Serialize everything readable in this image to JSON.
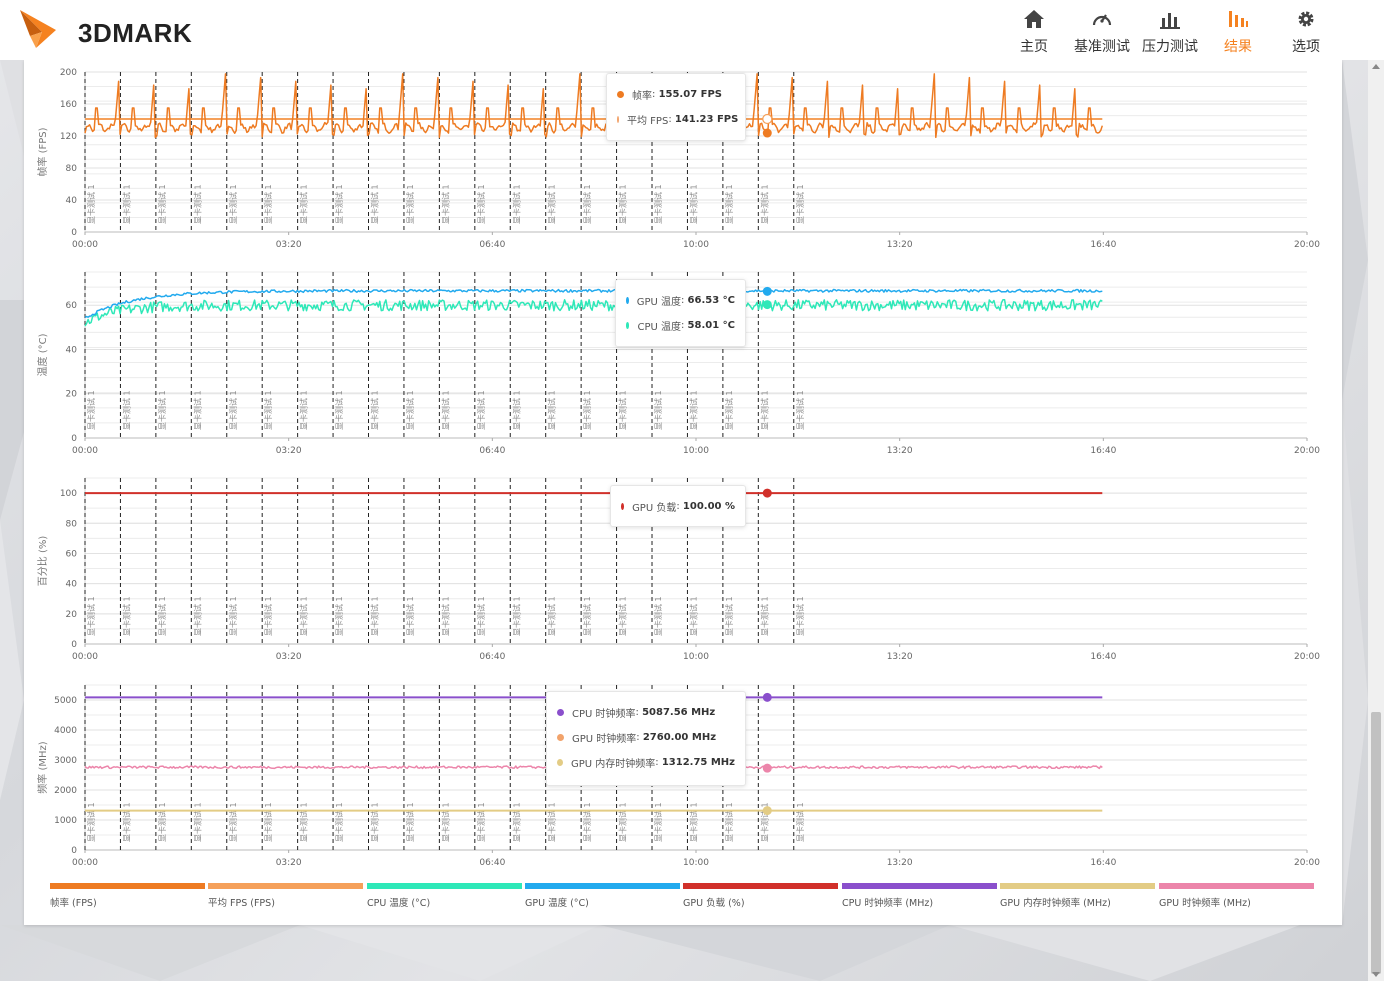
{
  "app": {
    "name": "3DMARK"
  },
  "nav": [
    {
      "key": "home",
      "label": "主页",
      "icon": "home-icon",
      "active": false
    },
    {
      "key": "benchmarks",
      "label": "基准测试",
      "icon": "speedometer-icon",
      "active": false
    },
    {
      "key": "stress",
      "label": "压力测试",
      "icon": "bar-chart-icon",
      "active": false
    },
    {
      "key": "results",
      "label": "结果",
      "icon": "results-icon",
      "active": true
    },
    {
      "key": "options",
      "label": "选项",
      "icon": "gear-icon",
      "active": false
    }
  ],
  "colors": {
    "accent": "#f58220",
    "fps": "#ee7b22",
    "avg_fps": "#f5a05a",
    "cpu_temp": "#2ee8b8",
    "gpu_temp": "#22aaee",
    "gpu_load": "#d1302a",
    "cpu_clock": "#8a4fcc",
    "gpu_mem_clock": "#e3cc85",
    "gpu_clock": "#ec85aa"
  },
  "x_axis": {
    "ticks": [
      "00:00",
      "03:20",
      "06:40",
      "10:00",
      "13:20",
      "16:40",
      "20:00"
    ],
    "max_seconds": 1200
  },
  "loop_marker_label": "显卡测试 1",
  "cursor_time": "11:10",
  "chart_data": [
    {
      "type": "line",
      "ylabel": "帧率 (FPS)",
      "ylim": [
        0,
        200
      ],
      "yticks": [
        0,
        40,
        80,
        120,
        160,
        200
      ],
      "series": [
        {
          "name": "帧率",
          "color_key": "fps",
          "pattern": "spiky",
          "base": 130,
          "peak": 200
        },
        {
          "name": "平均 FPS",
          "color_key": "avg_fps",
          "pattern": "flat",
          "value": 141.23
        }
      ],
      "tooltip": [
        {
          "label": "帧率",
          "value": "155.07 FPS",
          "color_key": "fps",
          "hollow": false
        },
        {
          "label": "平均 FPS",
          "value": "141.23 FPS",
          "color_key": "avg_fps",
          "hollow": true
        }
      ]
    },
    {
      "type": "line",
      "ylabel": "温度 (°C)",
      "ylim": [
        0,
        75
      ],
      "yticks": [
        0,
        20,
        40,
        60
      ],
      "series": [
        {
          "name": "GPU 温度",
          "color_key": "gpu_temp",
          "pattern": "warmup",
          "start": 54,
          "value": 66.5
        },
        {
          "name": "CPU 温度",
          "color_key": "cpu_temp",
          "pattern": "noisy",
          "start": 52,
          "value": 60
        }
      ],
      "tooltip": [
        {
          "label": "GPU 温度",
          "value": "66.53 °C",
          "color_key": "gpu_temp",
          "hollow": false
        },
        {
          "label": "CPU 温度",
          "value": "58.01 °C",
          "color_key": "cpu_temp",
          "hollow": false
        }
      ]
    },
    {
      "type": "line",
      "ylabel": "百分比 (%)",
      "ylim": [
        0,
        110
      ],
      "yticks": [
        0,
        20,
        40,
        60,
        80,
        100
      ],
      "series": [
        {
          "name": "GPU 负载",
          "color_key": "gpu_load",
          "pattern": "flat",
          "value": 100
        }
      ],
      "tooltip": [
        {
          "label": "GPU 负载",
          "value": "100.00 %",
          "color_key": "gpu_load",
          "hollow": false
        }
      ]
    },
    {
      "type": "line",
      "ylabel": "频率 (MHz)",
      "ylim": [
        0,
        5500
      ],
      "yticks": [
        0,
        1000,
        2000,
        3000,
        4000,
        5000
      ],
      "series": [
        {
          "name": "CPU 时钟频率",
          "color_key": "cpu_clock",
          "pattern": "flat",
          "value": 5087.56
        },
        {
          "name": "GPU 时钟频率",
          "color_key": "gpu_clock",
          "pattern": "wavy",
          "value": 2760
        },
        {
          "name": "GPU 内存时钟频率",
          "color_key": "gpu_mem_clock",
          "pattern": "flat",
          "value": 1312.75
        }
      ],
      "tooltip": [
        {
          "label": "CPU 时钟频率",
          "value": "5087.56 MHz",
          "color_key": "cpu_clock",
          "hollow": false
        },
        {
          "label": "GPU 时钟频率",
          "value": "2760.00 MHz",
          "color_key": "gpu_clock",
          "hollow": false
        },
        {
          "label": "GPU 内存时钟频率",
          "value": "1312.75 MHz",
          "color_key": "gpu_mem_clock",
          "hollow": false
        }
      ]
    }
  ],
  "legend": [
    {
      "label": "帧率 (FPS)",
      "color_key": "fps"
    },
    {
      "label": "平均 FPS (FPS)",
      "color_key": "avg_fps"
    },
    {
      "label": "CPU 温度 (°C)",
      "color_key": "cpu_temp"
    },
    {
      "label": "GPU 温度 (°C)",
      "color_key": "gpu_temp"
    },
    {
      "label": "GPU 负载 (%)",
      "color_key": "gpu_load"
    },
    {
      "label": "CPU 时钟频率 (MHz)",
      "color_key": "cpu_clock"
    },
    {
      "label": "GPU 内存时钟频率 (MHz)",
      "color_key": "gpu_mem_clock"
    },
    {
      "label": "GPU 时钟频率 (MHz)",
      "color_key": "gpu_clock"
    }
  ]
}
